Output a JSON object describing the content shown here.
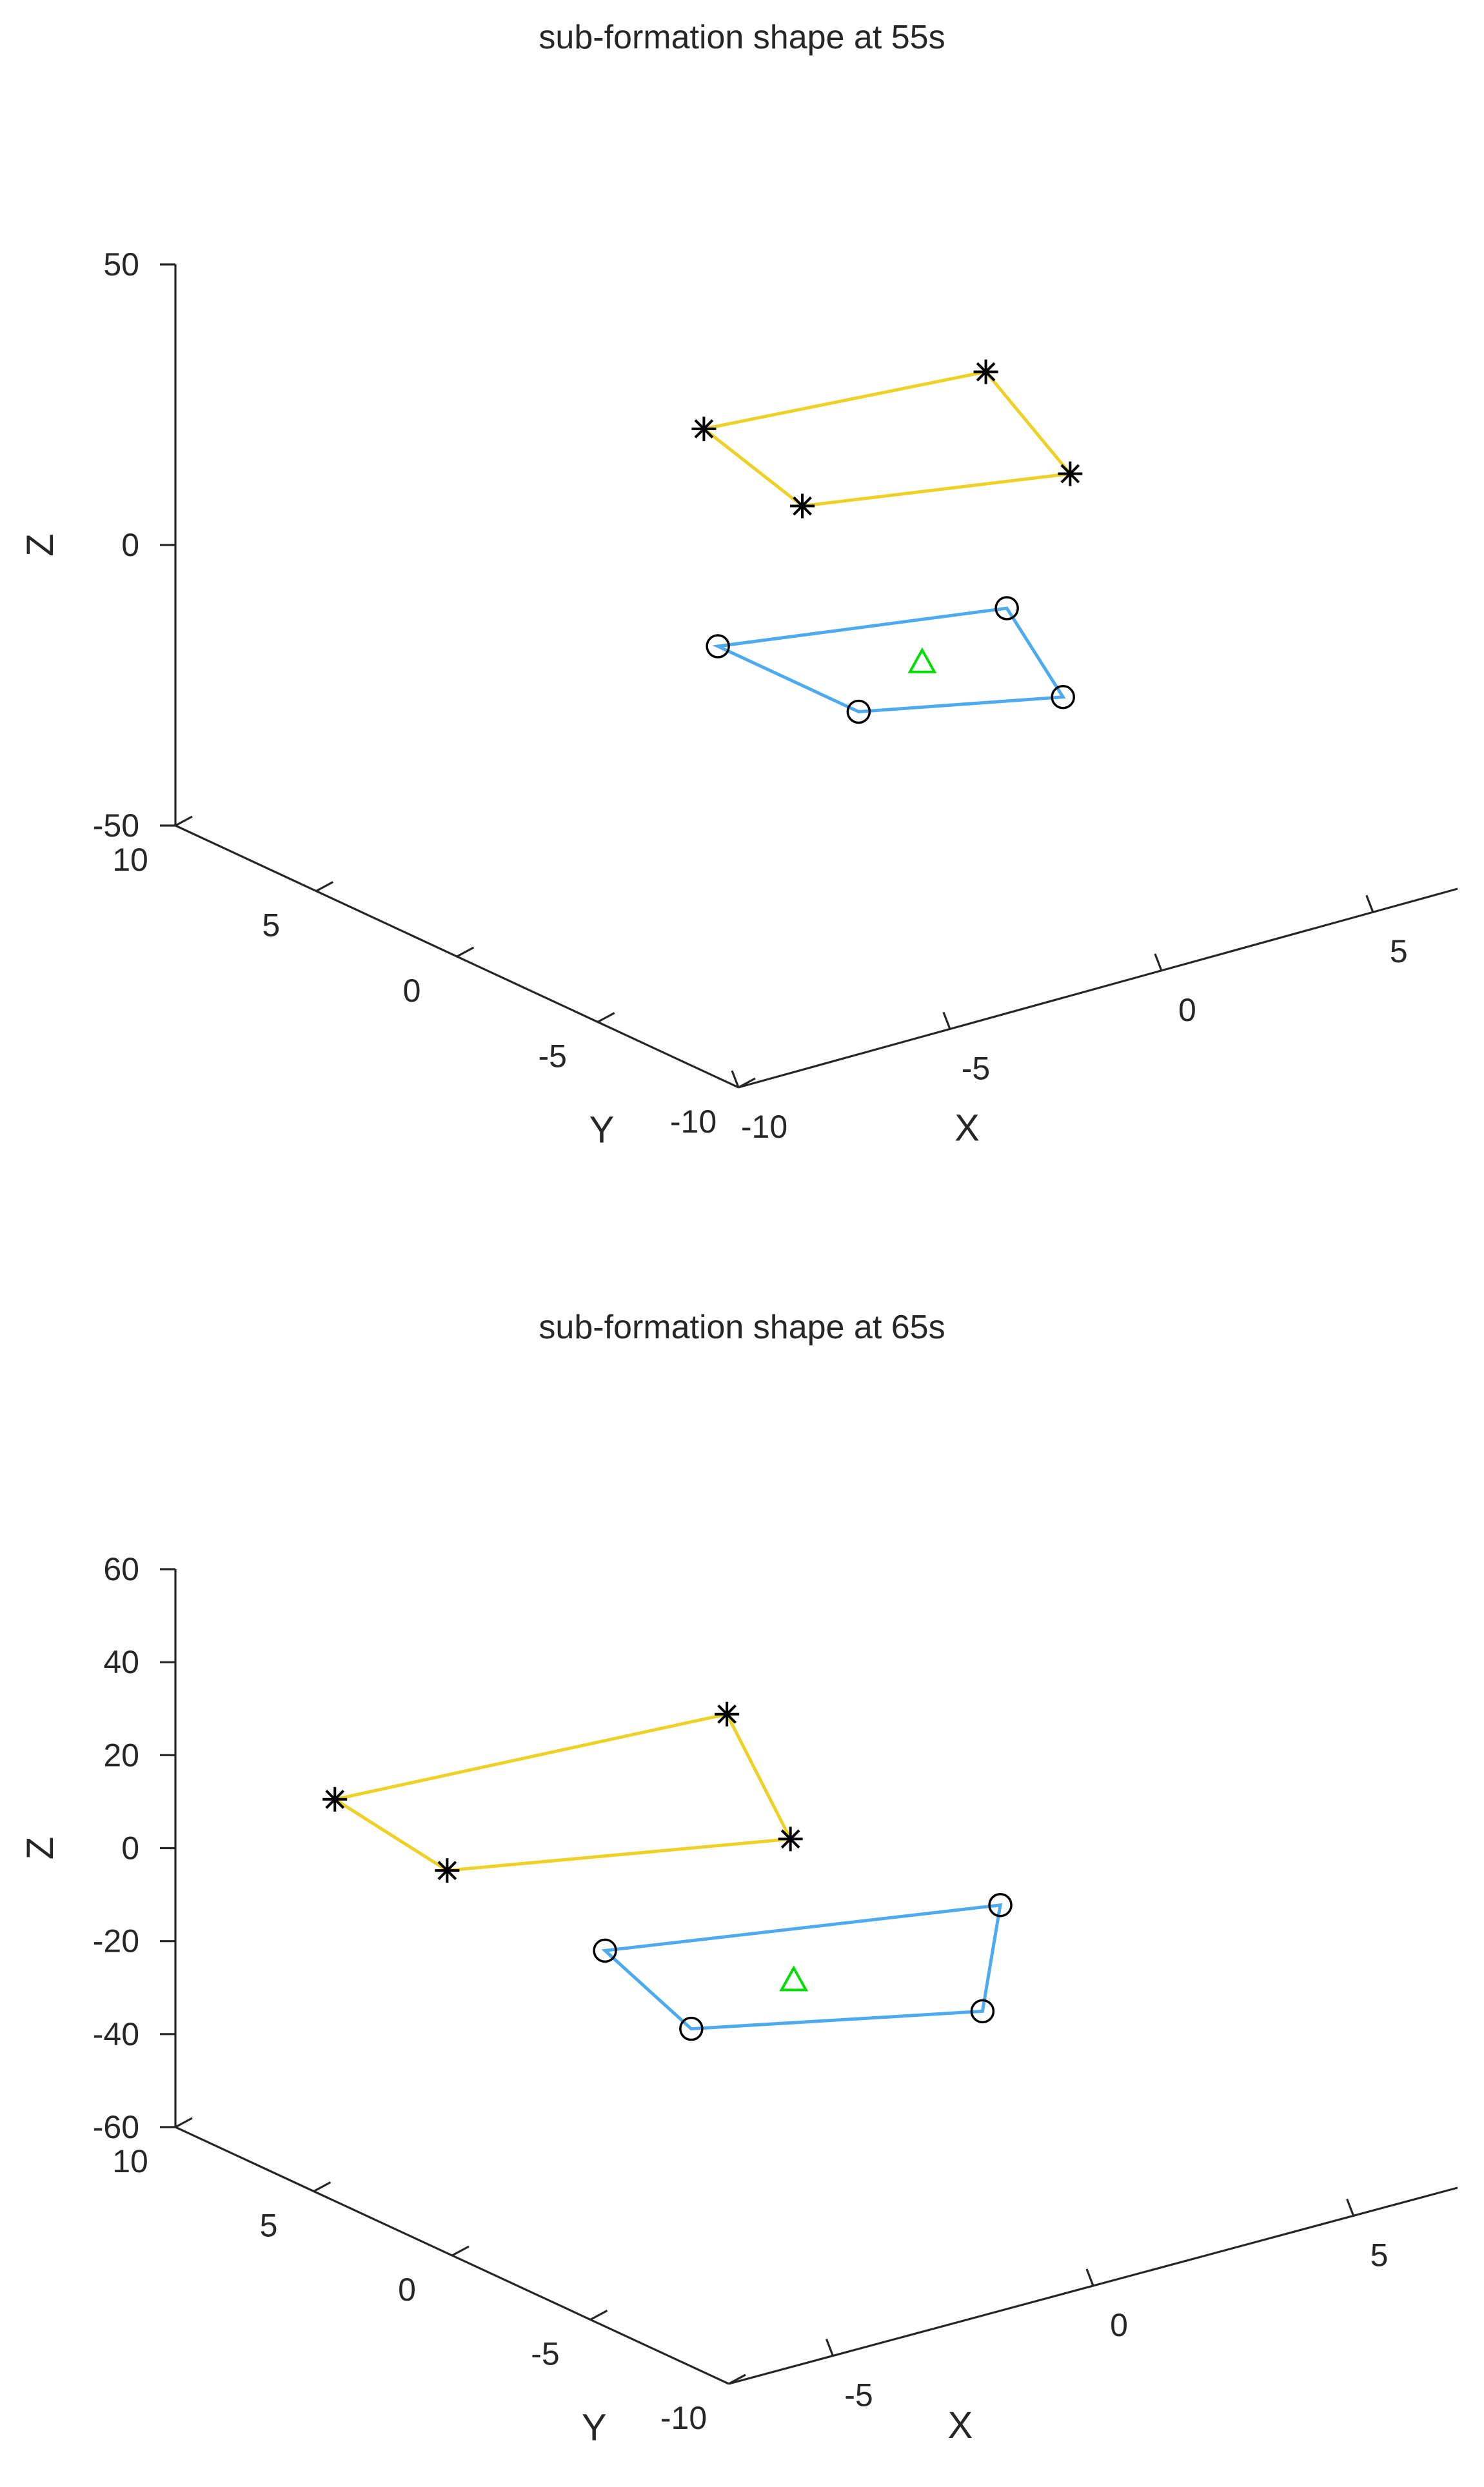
{
  "colors": {
    "upper_layer_edges": "#EDD127",
    "lower_layer_edges": "#4DAAEE",
    "leader_marker": "#00DD00",
    "markers": "#000000",
    "axes": "#262626"
  },
  "chart_data": [
    {
      "type": "scatter3d",
      "title": "sub-formation shape at 55s",
      "xlabel": "X",
      "ylabel": "Y",
      "zlabel": "Z",
      "xlim": [
        -10,
        7
      ],
      "ylim": [
        -10,
        10
      ],
      "zlim": [
        -50,
        50
      ],
      "xticks": [
        -10,
        -5,
        0,
        5
      ],
      "yticks": [
        -10,
        -5,
        0,
        5,
        10
      ],
      "zticks": [
        -50,
        0,
        50
      ],
      "xtick_labels": [
        "-10",
        "-5",
        "0",
        "5"
      ],
      "ytick_labels": [
        "-10",
        "-5",
        "0",
        "5",
        "10"
      ],
      "ztick_labels": [
        "-50",
        "0",
        "50"
      ],
      "grid": false,
      "series": [
        {
          "marker": "asterisk",
          "line_color": "#EDD127",
          "closed": true,
          "points": [
            [
              -1.5,
              4.0,
              17
            ],
            [
              4.5,
              3.0,
              17
            ],
            [
              2.5,
              -3.0,
              17
            ],
            [
              -2.5,
              -1.0,
              17
            ]
          ]
        },
        {
          "marker": "circle",
          "line_color": "#4DAAEE",
          "closed": true,
          "points": [
            [
              -2.5,
              2.0,
              -15
            ],
            [
              3.0,
              0.0,
              -15
            ],
            [
              1.0,
              -5.0,
              -15
            ],
            [
              -2.5,
              -3.0,
              -15
            ]
          ]
        },
        {
          "marker": "triangle",
          "marker_color": "#00DD00",
          "points": [
            [
              0.0,
              -1.5,
              -15
            ]
          ]
        }
      ]
    },
    {
      "type": "scatter3d",
      "title": "sub-formation shape at 65s",
      "xlabel": "X",
      "ylabel": "Y",
      "zlabel": "Z",
      "xlim": [
        -7,
        7
      ],
      "ylim": [
        -10,
        10
      ],
      "zlim": [
        -60,
        60
      ],
      "xticks": [
        -5,
        0,
        5
      ],
      "yticks": [
        -10,
        -5,
        0,
        5,
        10
      ],
      "zticks": [
        -60,
        -40,
        -20,
        0,
        20,
        40,
        60
      ],
      "xtick_labels": [
        "-5",
        "0",
        "5"
      ],
      "ytick_labels": [
        "-10",
        "-5",
        "0",
        "5",
        "10"
      ],
      "ztick_labels": [
        "-60",
        "-40",
        "-20",
        "0",
        "20",
        "40",
        "60"
      ],
      "grid": false,
      "series": [
        {
          "marker": "asterisk",
          "line_color": "#EDD127",
          "closed": true,
          "points": [
            [
              -5.0,
              8.0,
              10
            ],
            [
              2.0,
              7.0,
              10
            ],
            [
              -0.5,
              0.0,
              10
            ],
            [
              -5.5,
              3.0,
              10
            ]
          ]
        },
        {
          "marker": "circle",
          "line_color": "#4DAAEE",
          "closed": true,
          "points": [
            [
              -3.0,
              2.0,
              -12
            ],
            [
              3.0,
              -1.0,
              -12
            ],
            [
              0.0,
              -6.0,
              -12
            ],
            [
              -4.0,
              -3.0,
              -12
            ]
          ]
        },
        {
          "marker": "triangle",
          "marker_color": "#00DD00",
          "points": [
            [
              -1.5,
              -2.0,
              -12
            ]
          ]
        }
      ]
    }
  ]
}
